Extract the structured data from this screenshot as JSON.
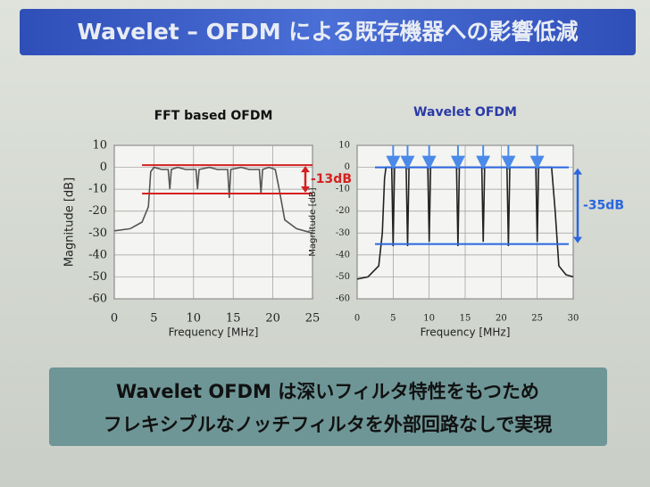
{
  "title": "Wavelet – OFDM による既存機器への影響低減",
  "caption": [
    "Wavelet OFDM は深いフィルタ特性をもつため",
    "フレキシブルなノッチフィルタを外部回路なしで実現"
  ],
  "chart_data": [
    {
      "type": "line",
      "title": "FFT based OFDM",
      "x_label": "Frequency [MHz]",
      "y_label": "Magnitude [dB]",
      "xlim": [
        0,
        25
      ],
      "xticks": [
        0,
        5,
        10,
        15,
        20,
        25
      ],
      "ylim": [
        -60,
        10
      ],
      "yticks": [
        10,
        0,
        -10,
        -20,
        -30,
        -40,
        -50,
        -60
      ],
      "grid": true,
      "series": [
        {
          "color": "#555555",
          "x": [
            0,
            2,
            3.5,
            4.3,
            4.6,
            5,
            6,
            6.8,
            7,
            7.2,
            8,
            9,
            10.3,
            10.5,
            10.7,
            12,
            13,
            14.3,
            14.5,
            14.7,
            16,
            17,
            18.3,
            18.5,
            18.7,
            19.5,
            20.3,
            20.8,
            21.5,
            23,
            25
          ],
          "values": [
            -29,
            -28,
            -25,
            -18,
            -2,
            0,
            -1,
            -1,
            -10,
            -1,
            0,
            -1,
            -1,
            -10,
            -1,
            0,
            -1,
            -1,
            -14,
            -1,
            0,
            -1,
            -1,
            -12,
            -1,
            0,
            -1,
            -10,
            -24,
            -28,
            -30
          ]
        }
      ],
      "annotation": {
        "label": "-13dB",
        "from": 1,
        "to": -12,
        "color": "#d42020"
      }
    },
    {
      "type": "line",
      "title": "Wavelet OFDM",
      "x_label": "Frequency [MHz]",
      "y_label": "Magnitude [dB]",
      "xlim": [
        0,
        30
      ],
      "xticks": [
        0,
        5,
        10,
        15,
        20,
        25,
        30
      ],
      "ylim": [
        -60,
        10
      ],
      "yticks": [
        10,
        0,
        -10,
        -20,
        -30,
        -40,
        -50,
        -60
      ],
      "grid": true,
      "series": [
        {
          "color": "#222222",
          "x": [
            0,
            1.5,
            3,
            3.5,
            3.8,
            4,
            4.8,
            5,
            5.2,
            6.8,
            7,
            7.2,
            9.8,
            10,
            10.2,
            13.8,
            14,
            14.2,
            17.3,
            17.5,
            17.7,
            20.8,
            21,
            21.2,
            24.8,
            25,
            25.2,
            27,
            27.5,
            28,
            29,
            30
          ],
          "values": [
            -51,
            -50,
            -45,
            -30,
            -5,
            0,
            0,
            -36,
            0,
            0,
            -36,
            0,
            0,
            -34,
            0,
            0,
            -36,
            0,
            0,
            -34,
            0,
            0,
            -36,
            0,
            0,
            -34,
            0,
            0,
            -20,
            -45,
            -49,
            -50
          ]
        }
      ],
      "annotation": {
        "label": "-35dB",
        "from": 0,
        "to": -35,
        "color": "#2a66e0"
      }
    }
  ]
}
